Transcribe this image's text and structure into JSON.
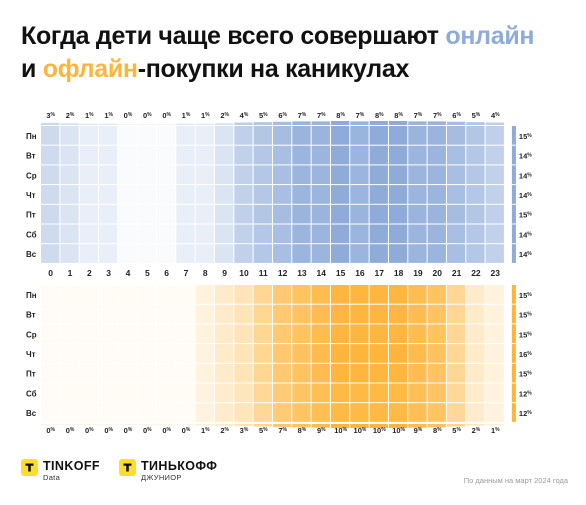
{
  "title": {
    "line1_prefix": "Когда дети чаще всего совершают ",
    "line1_online": "онлайн",
    "line2_prefix": "и ",
    "line2_offline": "офлайн",
    "line2_suffix": "-покупки  на  каникулах"
  },
  "colors": {
    "online": "#8EABD9",
    "offline": "#FFB53C",
    "logo": "#FFDD2D"
  },
  "chart_data": [
    {
      "type": "heatmap",
      "name": "онлайн",
      "hours": [
        "0",
        "1",
        "2",
        "3",
        "4",
        "5",
        "6",
        "7",
        "8",
        "9",
        "10",
        "11",
        "12",
        "13",
        "14",
        "15",
        "16",
        "17",
        "18",
        "19",
        "20",
        "21",
        "22",
        "23"
      ],
      "days": [
        "Пн",
        "Вт",
        "Ср",
        "Чт",
        "Пт",
        "Сб",
        "Вс"
      ],
      "hour_totals": [
        "3%",
        "2%",
        "1%",
        "1%",
        "0%",
        "0%",
        "0%",
        "1%",
        "1%",
        "2%",
        "4%",
        "5%",
        "6%",
        "7%",
        "7%",
        "8%",
        "7%",
        "8%",
        "8%",
        "7%",
        "7%",
        "6%",
        "5%",
        "4%"
      ],
      "hour_values": [
        3,
        2,
        1,
        1,
        0,
        0,
        0,
        1,
        1,
        2,
        4,
        5,
        6,
        7,
        7,
        8,
        7,
        8,
        8,
        7,
        7,
        6,
        5,
        4
      ],
      "day_totals": [
        "15%",
        "14%",
        "14%",
        "14%",
        "15%",
        "14%",
        "14%"
      ],
      "day_values": [
        15,
        14,
        14,
        14,
        15,
        14,
        14
      ]
    },
    {
      "type": "heatmap",
      "name": "офлайн",
      "hours": [
        "0",
        "1",
        "2",
        "3",
        "4",
        "5",
        "6",
        "7",
        "8",
        "9",
        "10",
        "11",
        "12",
        "13",
        "14",
        "15",
        "16",
        "17",
        "18",
        "19",
        "20",
        "21",
        "22",
        "23"
      ],
      "days": [
        "Пн",
        "Вт",
        "Ср",
        "Чт",
        "Пт",
        "Сб",
        "Вс"
      ],
      "hour_totals": [
        "0%",
        "0%",
        "0%",
        "0%",
        "0%",
        "0%",
        "0%",
        "0%",
        "1%",
        "2%",
        "3%",
        "5%",
        "7%",
        "8%",
        "9%",
        "10%",
        "10%",
        "10%",
        "10%",
        "9%",
        "8%",
        "5%",
        "2%",
        "1%"
      ],
      "hour_values": [
        0,
        0,
        0,
        0,
        0,
        0,
        0,
        0,
        1,
        2,
        3,
        5,
        7,
        8,
        9,
        10,
        10,
        10,
        10,
        9,
        8,
        5,
        2,
        1
      ],
      "day_totals": [
        "15%",
        "15%",
        "15%",
        "16%",
        "15%",
        "12%",
        "12%"
      ],
      "day_values": [
        15,
        15,
        15,
        16,
        15,
        12,
        12
      ]
    }
  ],
  "logos": {
    "tinkoff_name": "TINKOFF",
    "tinkoff_sub": "Data",
    "junior_name": "ТИНЬКОФФ",
    "junior_sub": "ДЖУНИОР"
  },
  "source": "По данным на март 2024 года"
}
